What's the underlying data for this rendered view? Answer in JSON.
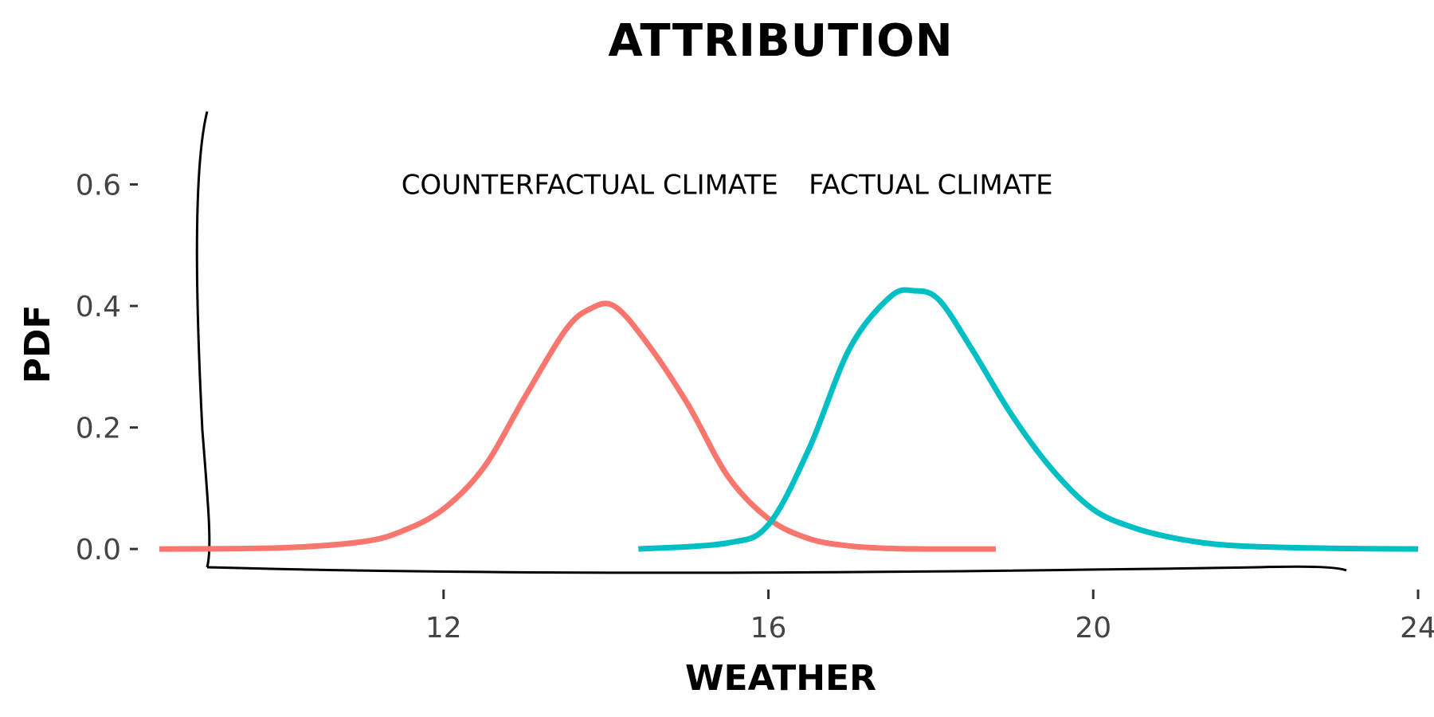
{
  "chart_data": {
    "type": "line",
    "title": "ATTRIBUTION",
    "xlabel": "WEATHER",
    "ylabel": "PDF",
    "xlim": [
      8.5,
      24
    ],
    "ylim": [
      -0.03,
      0.72
    ],
    "x_ticks": [
      12,
      16,
      20,
      24
    ],
    "y_ticks": [
      0.0,
      0.2,
      0.4,
      0.6
    ],
    "x_tick_labels": [
      "12",
      "16",
      "20",
      "24"
    ],
    "y_tick_labels": [
      "0.0",
      "0.2",
      "0.4",
      "0.6"
    ],
    "grid": false,
    "annotations": [
      {
        "text": "COUNTERFACTUAL CLIMATE",
        "x": 13.8,
        "y": 0.6
      },
      {
        "text": "FACTUAL CLIMATE",
        "x": 18.0,
        "y": 0.6
      }
    ],
    "series": [
      {
        "color": "#F8766D",
        "x": [
          8.5,
          10.0,
          11.0,
          11.5,
          12.0,
          12.5,
          13.0,
          13.5,
          13.8,
          14.1,
          14.5,
          15.0,
          15.5,
          16.0,
          16.5,
          17.0,
          17.5,
          18.0,
          18.8
        ],
        "y": [
          0.0,
          0.002,
          0.012,
          0.03,
          0.066,
          0.135,
          0.25,
          0.36,
          0.395,
          0.4,
          0.34,
          0.24,
          0.12,
          0.05,
          0.017,
          0.005,
          0.001,
          0.0,
          0.0
        ]
      },
      {
        "color": "#00BFC4",
        "x": [
          14.4,
          15.5,
          16.0,
          16.5,
          17.0,
          17.5,
          17.8,
          18.1,
          18.5,
          19.0,
          19.5,
          20.0,
          20.5,
          21.0,
          21.5,
          22.0,
          23.0,
          24.0
        ],
        "y": [
          0.0,
          0.01,
          0.04,
          0.165,
          0.33,
          0.415,
          0.425,
          0.41,
          0.33,
          0.22,
          0.13,
          0.065,
          0.035,
          0.018,
          0.008,
          0.004,
          0.001,
          0.0
        ]
      }
    ]
  }
}
